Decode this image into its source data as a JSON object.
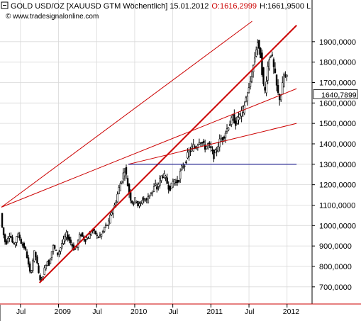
{
  "header": {
    "instrument": "GOLD USD/OZ [XAUUSD GTM  Wöchentlich] 15.01.2012",
    "open": "O:1616,2999",
    "high": "H:1661,9500 L",
    "watermark": "© www.tradesignalonline.com"
  },
  "colors": {
    "candle": "#000000",
    "trendline": "#cc0000",
    "support_line": "#000080",
    "grid": "#d9d9d9",
    "axis_border": "#cc0000",
    "header_red": "#cc0000"
  },
  "chart_data": {
    "type": "candlestick",
    "title": "GOLD USD/OZ [XAUUSD GTM  Wöchentlich]",
    "date": "15.01.2012",
    "timeframe": "Wöchentlich",
    "ylim": [
      630,
      2000
    ],
    "x_range": [
      "2008-04",
      "2012-02"
    ],
    "yticks": [
      "700,0000",
      "800,0000",
      "900,0000",
      "1000,0000",
      "1100,0000",
      "1200,0000",
      "1300,0000",
      "1400,0000",
      "1500,0000",
      "1600,0000",
      "1700,0000",
      "1800,0000",
      "1900,0000"
    ],
    "ytick_values": [
      700,
      800,
      900,
      1000,
      1100,
      1200,
      1300,
      1400,
      1500,
      1600,
      1700,
      1800,
      1900
    ],
    "xticks": [
      {
        "label": "Jul",
        "month": 3
      },
      {
        "label": "2009",
        "month": 9
      },
      {
        "label": "Jul",
        "month": 15
      },
      {
        "label": "2010",
        "month": 21
      },
      {
        "label": "Jul",
        "month": 27
      },
      {
        "label": "2011",
        "month": 33
      },
      {
        "label": "Jul",
        "month": 39
      },
      {
        "label": "2012",
        "month": 45
      }
    ],
    "last_value": "1640,7899",
    "last_value_num": 1640.79,
    "price_path": [
      [
        0,
        1060
      ],
      [
        0.3,
        970
      ],
      [
        0.6,
        940
      ],
      [
        0.8,
        900
      ],
      [
        1.0,
        930
      ],
      [
        1.3,
        960
      ],
      [
        1.6,
        945
      ],
      [
        2.0,
        900
      ],
      [
        2.3,
        920
      ],
      [
        2.6,
        960
      ],
      [
        3.0,
        940
      ],
      [
        3.3,
        910
      ],
      [
        3.6,
        900
      ],
      [
        4.0,
        870
      ],
      [
        4.3,
        820
      ],
      [
        4.5,
        780
      ],
      [
        4.7,
        760
      ],
      [
        5.0,
        820
      ],
      [
        5.3,
        870
      ],
      [
        5.6,
        840
      ],
      [
        6.0,
        760
      ],
      [
        6.3,
        730
      ],
      [
        6.6,
        750
      ],
      [
        7.0,
        800
      ],
      [
        7.3,
        830
      ],
      [
        7.6,
        810
      ],
      [
        8.0,
        870
      ],
      [
        8.3,
        900
      ],
      [
        8.6,
        880
      ],
      [
        9.0,
        860
      ],
      [
        9.3,
        880
      ],
      [
        9.6,
        910
      ],
      [
        10.0,
        930
      ],
      [
        10.3,
        960
      ],
      [
        10.6,
        940
      ],
      [
        11.0,
        920
      ],
      [
        11.3,
        900
      ],
      [
        11.6,
        880
      ],
      [
        12.0,
        900
      ],
      [
        12.3,
        940
      ],
      [
        12.6,
        960
      ],
      [
        13.0,
        940
      ],
      [
        13.3,
        930
      ],
      [
        13.6,
        940
      ],
      [
        14.0,
        950
      ],
      [
        14.3,
        980
      ],
      [
        14.6,
        970
      ],
      [
        15.0,
        960
      ],
      [
        15.3,
        940
      ],
      [
        15.6,
        950
      ],
      [
        16.0,
        960
      ],
      [
        16.3,
        990
      ],
      [
        16.6,
        1000
      ],
      [
        17.0,
        1010
      ],
      [
        17.3,
        1050
      ],
      [
        17.6,
        1080
      ],
      [
        18.0,
        1100
      ],
      [
        18.3,
        1140
      ],
      [
        18.6,
        1180
      ],
      [
        19.0,
        1220
      ],
      [
        19.3,
        1250
      ],
      [
        19.5,
        1280
      ],
      [
        19.7,
        1260
      ],
      [
        20.0,
        1200
      ],
      [
        20.3,
        1150
      ],
      [
        20.6,
        1120
      ],
      [
        21.0,
        1110
      ],
      [
        21.3,
        1140
      ],
      [
        21.6,
        1100
      ],
      [
        22.0,
        1100
      ],
      [
        22.3,
        1130
      ],
      [
        22.6,
        1130
      ],
      [
        23.0,
        1120
      ],
      [
        23.3,
        1150
      ],
      [
        23.6,
        1160
      ],
      [
        24.0,
        1170
      ],
      [
        24.3,
        1200
      ],
      [
        24.6,
        1180
      ],
      [
        25.0,
        1220
      ],
      [
        25.3,
        1240
      ],
      [
        25.6,
        1250
      ],
      [
        26.0,
        1230
      ],
      [
        26.3,
        1200
      ],
      [
        26.6,
        1180
      ],
      [
        27.0,
        1200
      ],
      [
        27.3,
        1230
      ],
      [
        27.6,
        1210
      ],
      [
        28.0,
        1220
      ],
      [
        28.3,
        1260
      ],
      [
        28.6,
        1290
      ],
      [
        29.0,
        1300
      ],
      [
        29.3,
        1330
      ],
      [
        29.6,
        1360
      ],
      [
        30.0,
        1370
      ],
      [
        30.3,
        1390
      ],
      [
        30.6,
        1380
      ],
      [
        31.0,
        1400
      ],
      [
        31.3,
        1420
      ],
      [
        31.6,
        1410
      ],
      [
        32.0,
        1390
      ],
      [
        32.3,
        1380
      ],
      [
        32.6,
        1400
      ],
      [
        33.0,
        1380
      ],
      [
        33.3,
        1360
      ],
      [
        33.6,
        1340
      ],
      [
        34.0,
        1370
      ],
      [
        34.3,
        1400
      ],
      [
        34.6,
        1420
      ],
      [
        35.0,
        1430
      ],
      [
        35.3,
        1450
      ],
      [
        35.6,
        1470
      ],
      [
        36.0,
        1500
      ],
      [
        36.3,
        1510
      ],
      [
        36.6,
        1530
      ],
      [
        37.0,
        1500
      ],
      [
        37.3,
        1520
      ],
      [
        37.6,
        1540
      ],
      [
        38.0,
        1550
      ],
      [
        38.3,
        1580
      ],
      [
        38.6,
        1620
      ],
      [
        39.0,
        1650
      ],
      [
        39.3,
        1700
      ],
      [
        39.6,
        1750
      ],
      [
        40.0,
        1820
      ],
      [
        40.3,
        1880
      ],
      [
        40.5,
        1900
      ],
      [
        40.7,
        1850
      ],
      [
        41.0,
        1830
      ],
      [
        41.3,
        1700
      ],
      [
        41.6,
        1650
      ],
      [
        42.0,
        1760
      ],
      [
        42.3,
        1820
      ],
      [
        42.6,
        1850
      ],
      [
        43.0,
        1770
      ],
      [
        43.3,
        1720
      ],
      [
        43.6,
        1650
      ],
      [
        44.0,
        1620
      ],
      [
        44.3,
        1660
      ],
      [
        44.6,
        1740
      ],
      [
        44.9,
        1720
      ]
    ],
    "trendlines": [
      {
        "name": "upper-fan-line",
        "color": "#cc0000",
        "width": 1,
        "from": [
          0,
          1090
        ],
        "to": [
          39.5,
          2000
        ]
      },
      {
        "name": "middle-fan-line",
        "color": "#cc0000",
        "width": 1,
        "from": [
          0,
          1090
        ],
        "to": [
          46.5,
          1670
        ]
      },
      {
        "name": "lower-fan-line",
        "color": "#cc0000",
        "width": 1,
        "from": [
          20.0,
          1300
        ],
        "to": [
          46.5,
          1500
        ]
      },
      {
        "name": "main-uptrend-line",
        "color": "#cc0000",
        "width": 2,
        "from": [
          6.0,
          720
        ],
        "to": [
          46.5,
          1980
        ]
      },
      {
        "name": "support-line-1300",
        "color": "#000080",
        "width": 1,
        "from": [
          20.0,
          1300
        ],
        "to": [
          46.5,
          1300
        ]
      }
    ],
    "grid": true,
    "yaxis_position": "right"
  }
}
